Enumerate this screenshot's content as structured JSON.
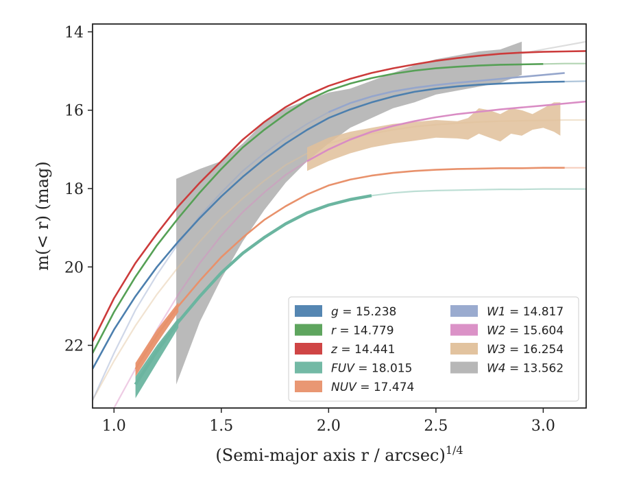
{
  "chart_data": {
    "type": "line",
    "xlabel": "(Semi-major axis r / arcsec)",
    "xlabel_sup": "1/4",
    "ylabel": "m(< r) (mag)",
    "xlim": [
      0.9,
      3.2
    ],
    "ylim": [
      23.6,
      13.8
    ],
    "y_inverted": true,
    "x_ticks": [
      1.0,
      1.5,
      2.0,
      2.5,
      3.0
    ],
    "x_tick_labels": [
      "1.0",
      "1.5",
      "2.0",
      "2.5",
      "3.0"
    ],
    "y_ticks": [
      14,
      16,
      18,
      20,
      22
    ],
    "y_tick_labels": [
      "14",
      "16",
      "18",
      "20",
      "22"
    ],
    "grid": false,
    "legend_position": "lower-right",
    "series": [
      {
        "name": "g",
        "total_mag": "15.238",
        "color": "#4c7fae",
        "kind": "line",
        "x": [
          0.9,
          1.0,
          1.1,
          1.2,
          1.3,
          1.4,
          1.5,
          1.6,
          1.7,
          1.8,
          1.9,
          2.0,
          2.1,
          2.2,
          2.3,
          2.4,
          2.5,
          2.6,
          2.7,
          2.8,
          2.9,
          3.0,
          3.1,
          3.2
        ],
        "y": [
          22.6,
          21.6,
          20.75,
          20.0,
          19.35,
          18.75,
          18.2,
          17.7,
          17.25,
          16.85,
          16.5,
          16.2,
          15.98,
          15.8,
          15.65,
          15.53,
          15.45,
          15.39,
          15.35,
          15.32,
          15.3,
          15.28,
          15.27,
          15.26
        ],
        "faint_after_x": 3.1
      },
      {
        "name": "r",
        "total_mag": "14.779",
        "color": "#55a055",
        "kind": "line",
        "x": [
          0.9,
          1.0,
          1.1,
          1.2,
          1.3,
          1.4,
          1.5,
          1.6,
          1.7,
          1.8,
          1.9,
          2.0,
          2.1,
          2.2,
          2.3,
          2.4,
          2.5,
          2.6,
          2.7,
          2.8,
          2.9,
          3.0,
          3.1,
          3.2
        ],
        "y": [
          22.2,
          21.15,
          20.25,
          19.45,
          18.75,
          18.1,
          17.5,
          16.95,
          16.5,
          16.1,
          15.75,
          15.5,
          15.32,
          15.18,
          15.07,
          14.99,
          14.93,
          14.89,
          14.86,
          14.84,
          14.83,
          14.82,
          14.81,
          14.81
        ],
        "faint_after_x": 3.0
      },
      {
        "name": "z",
        "total_mag": "14.441",
        "color": "#cc3b3b",
        "kind": "line",
        "x": [
          0.9,
          1.0,
          1.1,
          1.2,
          1.3,
          1.4,
          1.5,
          1.6,
          1.7,
          1.8,
          1.9,
          2.0,
          2.1,
          2.2,
          2.3,
          2.4,
          2.5,
          2.6,
          2.7,
          2.8,
          2.9,
          3.0,
          3.1,
          3.2
        ],
        "y": [
          21.9,
          20.8,
          19.9,
          19.15,
          18.45,
          17.85,
          17.3,
          16.75,
          16.3,
          15.92,
          15.62,
          15.38,
          15.2,
          15.05,
          14.93,
          14.83,
          14.74,
          14.67,
          14.61,
          14.56,
          14.53,
          14.51,
          14.5,
          14.49
        ],
        "faint_after_x": 3.3
      },
      {
        "name": "FUV",
        "total_mag": "18.015",
        "color": "#6bb5a0",
        "kind": "line",
        "x": [
          1.1,
          1.2,
          1.3,
          1.4,
          1.5,
          1.6,
          1.7,
          1.8,
          1.9,
          2.0,
          2.1,
          2.2,
          2.3,
          2.4,
          2.5,
          2.6,
          2.7,
          2.8,
          2.9,
          3.0,
          3.1,
          3.2
        ],
        "y": [
          23.0,
          22.15,
          21.4,
          20.75,
          20.15,
          19.65,
          19.25,
          18.9,
          18.62,
          18.42,
          18.28,
          18.18,
          18.11,
          18.07,
          18.05,
          18.04,
          18.03,
          18.02,
          18.02,
          18.01,
          18.01,
          18.01
        ],
        "band_x": [
          1.1,
          1.2,
          1.3
        ],
        "band_lo": [
          22.8,
          22.0,
          21.3
        ],
        "band_hi": [
          23.35,
          22.45,
          21.55
        ],
        "faint_after_x": 2.28
      },
      {
        "name": "NUV",
        "total_mag": "17.474",
        "color": "#e8916b",
        "kind": "line",
        "x": [
          1.1,
          1.2,
          1.3,
          1.4,
          1.5,
          1.6,
          1.7,
          1.8,
          1.9,
          2.0,
          2.1,
          2.2,
          2.3,
          2.4,
          2.5,
          2.6,
          2.7,
          2.8,
          2.9,
          3.0,
          3.1,
          3.2
        ],
        "y": [
          22.6,
          21.75,
          21.0,
          20.35,
          19.75,
          19.25,
          18.8,
          18.45,
          18.15,
          17.92,
          17.77,
          17.67,
          17.6,
          17.55,
          17.52,
          17.5,
          17.49,
          17.48,
          17.48,
          17.47,
          17.47,
          17.47
        ],
        "band_x": [
          1.1,
          1.2,
          1.3
        ],
        "band_lo": [
          22.45,
          21.6,
          20.9
        ],
        "band_hi": [
          22.8,
          21.95,
          21.15
        ],
        "faint_after_x": 3.1
      },
      {
        "name": "W1",
        "total_mag": "14.817",
        "color": "#95a6cc",
        "kind": "line",
        "x": [
          0.9,
          1.0,
          1.1,
          1.2,
          1.3,
          1.4,
          1.5,
          1.6,
          1.7,
          1.8,
          1.9,
          2.0,
          2.1,
          2.2,
          2.3,
          2.4,
          2.5,
          2.6,
          2.7,
          2.8,
          2.9,
          3.0,
          3.1
        ],
        "y": [
          23.4,
          22.2,
          21.1,
          20.2,
          19.4,
          18.7,
          18.1,
          17.55,
          17.1,
          16.7,
          16.35,
          16.05,
          15.82,
          15.65,
          15.52,
          15.43,
          15.36,
          15.3,
          15.25,
          15.2,
          15.15,
          15.1,
          15.05
        ],
        "faint_before_x": 2.0
      },
      {
        "name": "W2",
        "total_mag": "15.604",
        "color": "#d98cc4",
        "kind": "line",
        "x": [
          0.9,
          1.0,
          1.1,
          1.2,
          1.3,
          1.4,
          1.5,
          1.6,
          1.7,
          1.8,
          1.9,
          2.0,
          2.1,
          2.2,
          2.3,
          2.4,
          2.5,
          2.6,
          2.7,
          2.8,
          2.9,
          3.0,
          3.1,
          3.2
        ],
        "y": [
          24.8,
          23.6,
          22.6,
          21.6,
          20.7,
          19.9,
          19.2,
          18.6,
          18.1,
          17.65,
          17.3,
          17.0,
          16.75,
          16.55,
          16.4,
          16.28,
          16.18,
          16.1,
          16.04,
          15.98,
          15.93,
          15.88,
          15.83,
          15.78
        ],
        "faint_before_x": 1.9
      },
      {
        "name": "W3",
        "total_mag": "16.254",
        "color": "#e0c09a",
        "kind": "band",
        "x": [
          0.9,
          1.0,
          1.1,
          1.2,
          1.3,
          1.4,
          1.5,
          1.6,
          1.7,
          1.8,
          1.9,
          2.0,
          2.1,
          2.2,
          2.3,
          2.4,
          2.5,
          2.6,
          2.7,
          2.8,
          2.9,
          3.0,
          3.1,
          3.2
        ],
        "y": [
          23.4,
          22.4,
          21.5,
          20.7,
          20.0,
          19.35,
          18.75,
          18.25,
          17.8,
          17.4,
          17.1,
          16.85,
          16.7,
          16.6,
          16.5,
          16.42,
          16.37,
          16.33,
          16.3,
          16.28,
          16.27,
          16.26,
          16.25,
          16.25
        ],
        "band_x": [
          1.9,
          2.0,
          2.1,
          2.2,
          2.3,
          2.4,
          2.5,
          2.6,
          2.65,
          2.7,
          2.75,
          2.8,
          2.85,
          2.9,
          2.95,
          3.0,
          3.05,
          3.08
        ],
        "band_lo": [
          16.95,
          16.7,
          16.55,
          16.45,
          16.35,
          16.3,
          16.25,
          16.28,
          16.2,
          15.95,
          16.0,
          16.1,
          15.95,
          16.0,
          16.1,
          15.95,
          15.8,
          15.8
        ],
        "band_hi": [
          17.55,
          17.3,
          17.1,
          16.95,
          16.85,
          16.78,
          16.7,
          16.72,
          16.75,
          16.6,
          16.7,
          16.8,
          16.6,
          16.65,
          16.5,
          16.45,
          16.55,
          16.65
        ],
        "faint_before_x": 1.9
      },
      {
        "name": "W4",
        "total_mag": "13.562",
        "color": "#b3b3b3",
        "kind": "band",
        "x": [
          2.9,
          3.0,
          3.1,
          3.2
        ],
        "y": [
          14.55,
          14.45,
          14.35,
          14.25
        ],
        "band_x": [
          1.29,
          1.4,
          1.5,
          1.6,
          1.7,
          1.8,
          1.9,
          2.0,
          2.1,
          2.2,
          2.3,
          2.4,
          2.5,
          2.6,
          2.7,
          2.8,
          2.9
        ],
        "band_lo": [
          17.75,
          17.5,
          17.3,
          16.85,
          16.3,
          15.95,
          15.75,
          15.55,
          15.45,
          15.25,
          15.05,
          14.85,
          14.7,
          14.6,
          14.5,
          14.45,
          14.25
        ],
        "band_hi": [
          23.0,
          21.4,
          20.3,
          19.35,
          18.55,
          17.85,
          17.3,
          16.85,
          16.45,
          16.2,
          15.95,
          15.8,
          15.6,
          15.5,
          15.4,
          15.3,
          15.1
        ],
        "faint_after_x": 2.9
      }
    ]
  },
  "legend": {
    "left": [
      {
        "var": "g",
        "value": "15.238",
        "color": "#4c7fae"
      },
      {
        "var": "r",
        "value": "14.779",
        "color": "#55a055"
      },
      {
        "var": "z",
        "value": "14.441",
        "color": "#cc3b3b"
      },
      {
        "var": "FUV",
        "value": "18.015",
        "color": "#6bb5a0"
      },
      {
        "var": "NUV",
        "value": "17.474",
        "color": "#e8916b"
      }
    ],
    "right": [
      {
        "var": "W1",
        "value": "14.817",
        "color": "#95a6cc"
      },
      {
        "var": "W2",
        "value": "15.604",
        "color": "#d98cc4"
      },
      {
        "var": "W3",
        "value": "16.254",
        "color": "#e0c09a"
      },
      {
        "var": "W4",
        "value": "13.562",
        "color": "#b3b3b3"
      }
    ]
  }
}
